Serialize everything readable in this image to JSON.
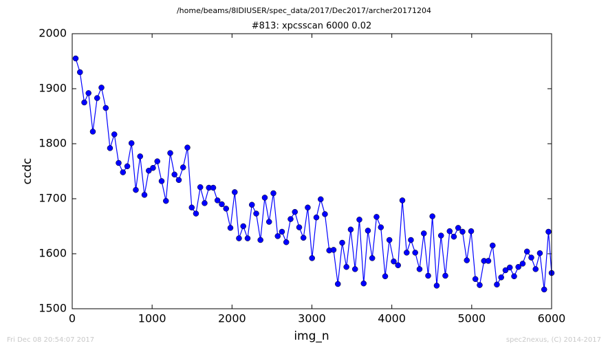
{
  "chart_data": {
    "type": "line",
    "title": "/home/beams/8IDIUSER/spec_data/2017/Dec2017/archer20171204",
    "subtitle": "#813: xpcsscan 6000 0.02",
    "x_label": "img_n",
    "y_label": "ccdc",
    "footer_left": "Fri Dec 08 20:54:07 2017",
    "footer_right": "spec2nexus, (C) 2014-2017",
    "x": [
      43,
      97,
      151,
      204,
      258,
      312,
      366,
      420,
      473,
      527,
      581,
      635,
      689,
      742,
      796,
      850,
      904,
      958,
      1011,
      1065,
      1119,
      1173,
      1227,
      1280,
      1334,
      1388,
      1442,
      1496,
      1549,
      1603,
      1657,
      1711,
      1765,
      1818,
      1872,
      1926,
      1980,
      2034,
      2087,
      2141,
      2195,
      2249,
      2303,
      2356,
      2410,
      2464,
      2518,
      2572,
      2625,
      2679,
      2733,
      2787,
      2841,
      2894,
      2948,
      3002,
      3056,
      3110,
      3163,
      3217,
      3271,
      3325,
      3379,
      3432,
      3486,
      3540,
      3594,
      3648,
      3701,
      3755,
      3809,
      3863,
      3917,
      3970,
      4024,
      4078,
      4132,
      4186,
      4239,
      4293,
      4347,
      4401,
      4455,
      4508,
      4562,
      4616,
      4670,
      4724,
      4777,
      4831,
      4885,
      4939,
      4993,
      5046,
      5100,
      5154,
      5208,
      5262,
      5315,
      5369,
      5423,
      5477,
      5531,
      5584,
      5638,
      5692,
      5746,
      5800,
      5853,
      5907,
      5961,
      6000
    ],
    "series": [
      {
        "name": "ccdc",
        "color": "#0000ff",
        "values": [
          1955,
          1930,
          1875,
          1892,
          1822,
          1883,
          1902,
          1865,
          1792,
          1817,
          1765,
          1748,
          1759,
          1801,
          1716,
          1777,
          1707,
          1751,
          1756,
          1768,
          1732,
          1696,
          1783,
          1744,
          1734,
          1757,
          1793,
          1684,
          1673,
          1721,
          1692,
          1720,
          1720,
          1697,
          1690,
          1682,
          1647,
          1712,
          1628,
          1650,
          1628,
          1689,
          1673,
          1625,
          1702,
          1658,
          1710,
          1632,
          1640,
          1621,
          1663,
          1676,
          1648,
          1629,
          1684,
          1592,
          1666,
          1699,
          1672,
          1606,
          1607,
          1545,
          1620,
          1576,
          1644,
          1572,
          1662,
          1546,
          1642,
          1592,
          1667,
          1648,
          1559,
          1625,
          1586,
          1579,
          1697,
          1602,
          1625,
          1602,
          1572,
          1637,
          1560,
          1668,
          1542,
          1633,
          1560,
          1641,
          1631,
          1647,
          1640,
          1588,
          1641,
          1554,
          1543,
          1587,
          1587,
          1615,
          1544,
          1557,
          1570,
          1575,
          1559,
          1576,
          1582,
          1604,
          1593,
          1572,
          1601,
          1535,
          1640,
          1565
        ]
      }
    ],
    "xlim": [
      0,
      6000
    ],
    "xticks": [
      0,
      1000,
      2000,
      3000,
      4000,
      5000,
      6000
    ],
    "ylim": [
      1500,
      2000
    ],
    "yticks": [
      1500,
      1600,
      1700,
      1800,
      1900,
      2000
    ],
    "grid": false
  }
}
